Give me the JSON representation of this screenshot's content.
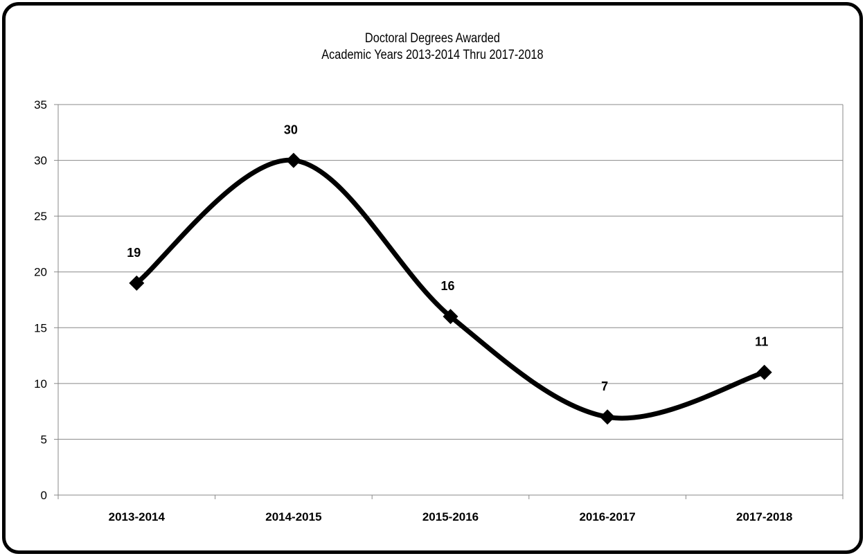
{
  "chart_data": {
    "type": "line",
    "title": "Doctoral Degrees Awarded",
    "subtitle": "Academic Years 2013-2014 Thru 2017-2018",
    "categories": [
      "2013-2014",
      "2014-2015",
      "2015-2016",
      "2016-2017",
      "2017-2018"
    ],
    "values": [
      19,
      30,
      16,
      7,
      11
    ],
    "data_labels": [
      "19",
      "30",
      "16",
      "7",
      "11"
    ],
    "ylim": [
      0,
      35
    ],
    "y_ticks": [
      0,
      5,
      10,
      15,
      20,
      25,
      30,
      35
    ],
    "xlabel": "",
    "ylabel": "",
    "grid": true,
    "smooth": true,
    "marker": "diamond",
    "line_color": "#000000",
    "grid_color": "#888888"
  }
}
